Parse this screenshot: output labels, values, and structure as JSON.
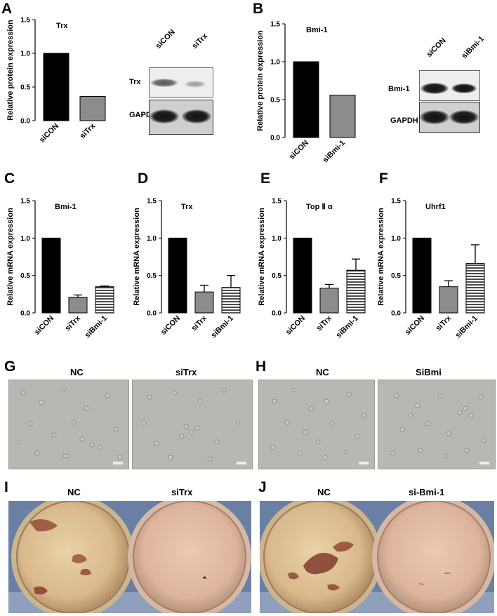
{
  "panels": {
    "A": {
      "letter": "A",
      "blot": {
        "lanes": [
          "siCON",
          "siTrx"
        ],
        "rows": [
          "Trx",
          "GAPDH"
        ]
      }
    },
    "B": {
      "letter": "B",
      "blot": {
        "lanes": [
          "siCON",
          "siBmi-1"
        ],
        "rows": [
          "Bmi-1",
          "GAPDH"
        ]
      }
    },
    "C": {
      "letter": "C"
    },
    "D": {
      "letter": "D"
    },
    "E": {
      "letter": "E"
    },
    "F": {
      "letter": "F"
    },
    "G": {
      "letter": "G",
      "labels": [
        "NC",
        "siTrx"
      ]
    },
    "H": {
      "letter": "H",
      "labels": [
        "NC",
        "SiBmi"
      ]
    },
    "I": {
      "letter": "I",
      "labels": [
        "NC",
        "siTrx"
      ]
    },
    "J": {
      "letter": "J",
      "labels": [
        "NC",
        "si-Bmi-1"
      ]
    }
  },
  "colors": {
    "siCON": "#000000",
    "siTrx": "#8c8c8c",
    "siBmi": "#ffffff",
    "stroke": "#000000"
  },
  "chart_data": [
    {
      "id": "A",
      "type": "bar",
      "title": "Trx",
      "ylabel": "Relative protein expression",
      "xlabel": "",
      "categories": [
        "siCON",
        "siTrx"
      ],
      "values": [
        1.0,
        0.36
      ],
      "errors": [
        0,
        0
      ],
      "fills": [
        "siCON",
        "siTrx"
      ],
      "ylim": [
        0,
        1.5
      ],
      "yticks": [
        "0.0",
        "0.5",
        "1.0",
        "1.5"
      ]
    },
    {
      "id": "B",
      "type": "bar",
      "title": "Bmi-1",
      "ylabel": "Relative protein expression",
      "xlabel": "",
      "categories": [
        "siCON",
        "siBmi-1"
      ],
      "values": [
        1.0,
        0.56
      ],
      "errors": [
        0,
        0
      ],
      "fills": [
        "siCON",
        "siTrx"
      ],
      "ylim": [
        0,
        1.5
      ],
      "yticks": [
        "0.0",
        "0.5",
        "1.0",
        "1.5"
      ]
    },
    {
      "id": "C",
      "type": "bar",
      "title": "Bmi-1",
      "ylabel": "Relative mRNA expression",
      "xlabel": "",
      "categories": [
        "siCON",
        "siTrx",
        "siBmi-1"
      ],
      "values": [
        1.0,
        0.21,
        0.35
      ],
      "errors": [
        0,
        0.03,
        0.01
      ],
      "fills": [
        "siCON",
        "siTrx",
        "siBmi"
      ],
      "ylim": [
        0,
        1.5
      ],
      "yticks": [
        "0.0",
        "0.5",
        "1.0",
        "1.5"
      ]
    },
    {
      "id": "D",
      "type": "bar",
      "title": "Trx",
      "ylabel": "Relative mRNA expression",
      "xlabel": "",
      "categories": [
        "siCON",
        "siTrx",
        "siBmi-1"
      ],
      "values": [
        1.0,
        0.28,
        0.34
      ],
      "errors": [
        0,
        0.09,
        0.16
      ],
      "fills": [
        "siCON",
        "siTrx",
        "siBmi"
      ],
      "ylim": [
        0,
        1.5
      ],
      "yticks": [
        "0.0",
        "0.5",
        "1.0",
        "1.5"
      ]
    },
    {
      "id": "E",
      "type": "bar",
      "title": "Top Ⅱ α",
      "ylabel": "Relative mRNA expression",
      "xlabel": "",
      "categories": [
        "siCON",
        "siTrx",
        "siBmi-1"
      ],
      "values": [
        1.0,
        0.33,
        0.57
      ],
      "errors": [
        0,
        0.05,
        0.15
      ],
      "fills": [
        "siCON",
        "siTrx",
        "siBmi"
      ],
      "ylim": [
        0,
        1.5
      ],
      "yticks": [
        "0.0",
        "0.5",
        "1.0",
        "1.5"
      ]
    },
    {
      "id": "F",
      "type": "bar",
      "title": "Uhrf1",
      "ylabel": "Relative mRNA expression",
      "xlabel": "",
      "categories": [
        "siCON",
        "siTrx",
        "siBmi-1"
      ],
      "values": [
        1.0,
        0.35,
        0.66
      ],
      "errors": [
        0,
        0.08,
        0.25
      ],
      "fills": [
        "siCON",
        "siTrx",
        "siBmi"
      ],
      "ylim": [
        0,
        1.5
      ],
      "yticks": [
        "0.0",
        "0.5",
        "1.0",
        "1.5"
      ]
    }
  ]
}
